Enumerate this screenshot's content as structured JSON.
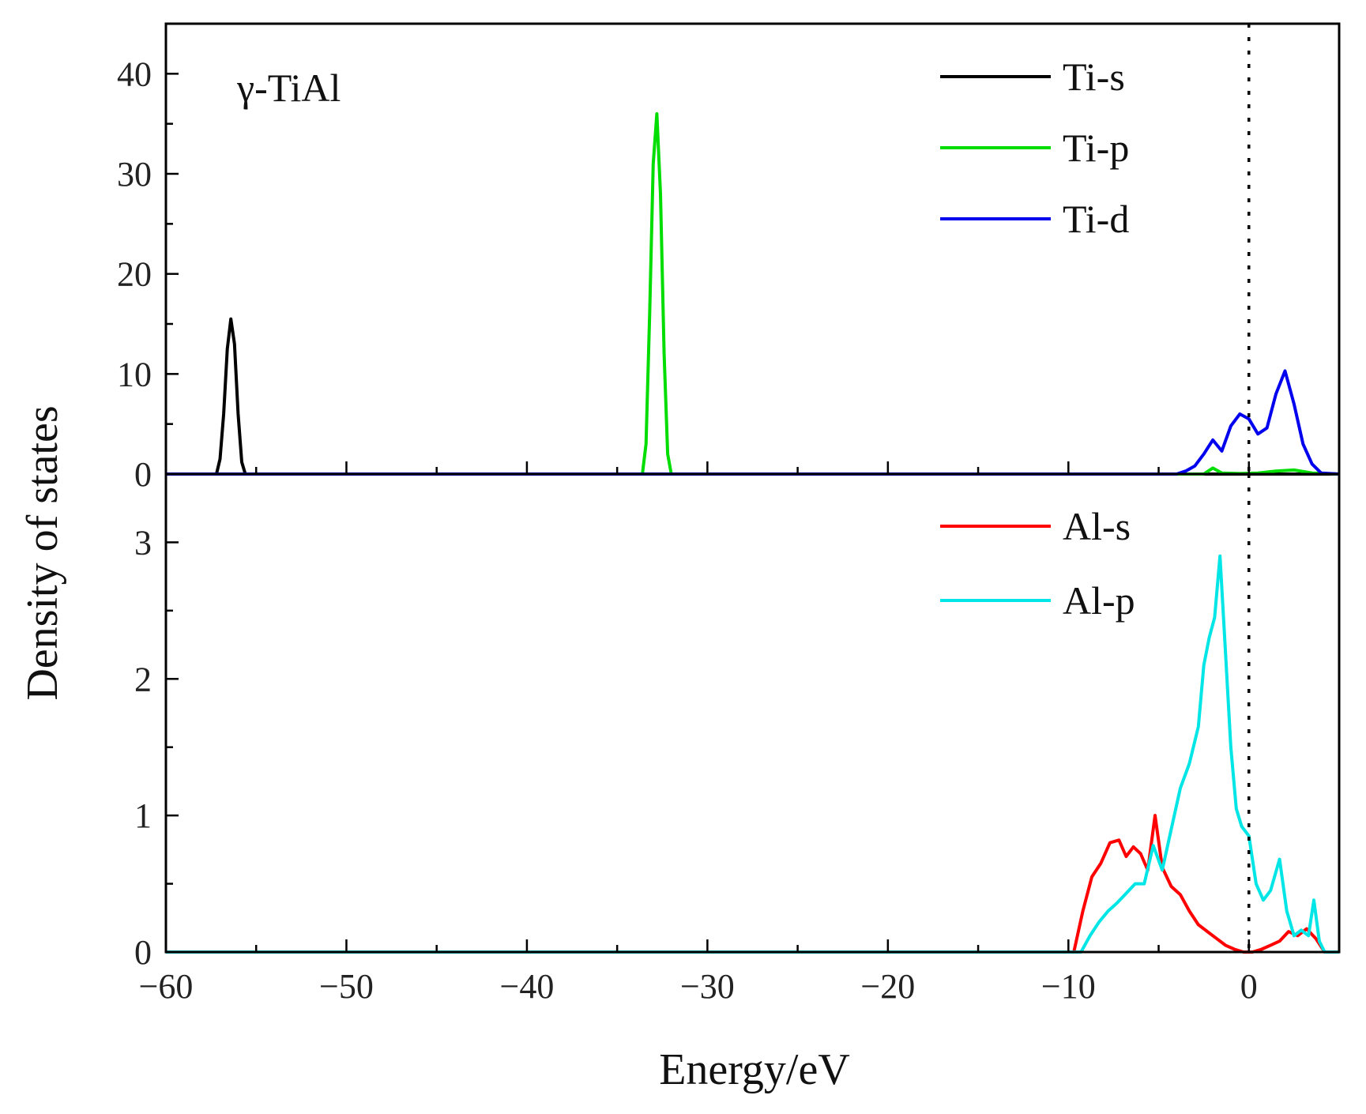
{
  "chart_data": {
    "type": "line",
    "xlabel": "Energy/eV",
    "ylabel": "Density of states",
    "xlim": [
      -60,
      5
    ],
    "xticks": [
      -60,
      -50,
      -40,
      -30,
      -20,
      -10,
      0
    ],
    "xtick_labels": [
      "−60",
      "−50",
      "−40",
      "−30",
      "−20",
      "−10",
      "0"
    ],
    "fermi_level": 0,
    "panels": [
      {
        "id": "top",
        "annotation": "γ-TiAl",
        "ylim": [
          0,
          45
        ],
        "yticks": [
          0,
          10,
          20,
          30,
          40
        ],
        "ytick_labels": [
          "0",
          "10",
          "20",
          "30",
          "40"
        ],
        "series": [
          {
            "name": "Ti-s",
            "color": "#000000",
            "x": [
              -60,
              -57.2,
              -57.0,
              -56.8,
              -56.6,
              -56.4,
              -56.2,
              -56.0,
              -55.8,
              -55.6,
              5
            ],
            "y": [
              0,
              0,
              1.5,
              6,
              12.5,
              15.5,
              13,
              6,
              1.2,
              0,
              0
            ]
          },
          {
            "name": "Ti-p",
            "color": "#00dd00",
            "x": [
              -60,
              -33.6,
              -33.4,
              -33.2,
              -33.0,
              -32.8,
              -32.6,
              -32.4,
              -32.2,
              -32.0,
              -2.5,
              -2.0,
              -1.5,
              -0.5,
              0.5,
              1.5,
              2.5,
              3.5,
              5
            ],
            "y": [
              0,
              0,
              3,
              16,
              31,
              36,
              28,
              12,
              2,
              0,
              0,
              0.6,
              0.1,
              0.05,
              0.1,
              0.3,
              0.4,
              0.1,
              0
            ]
          },
          {
            "name": "Ti-d",
            "color": "#0000ee",
            "x": [
              -60,
              -4.0,
              -3.5,
              -3.0,
              -2.5,
              -2.0,
              -1.5,
              -1.0,
              -0.5,
              0.0,
              0.5,
              1.0,
              1.5,
              2.0,
              2.5,
              3.0,
              3.5,
              4.0,
              5
            ],
            "y": [
              0,
              0,
              0.3,
              0.8,
              2.0,
              3.4,
              2.3,
              4.8,
              6.0,
              5.5,
              4.0,
              4.6,
              8.0,
              10.3,
              7.0,
              3.0,
              1.0,
              0.1,
              0
            ]
          }
        ]
      },
      {
        "id": "bottom",
        "ylim": [
          0,
          3.5
        ],
        "yticks": [
          0,
          1,
          2,
          3
        ],
        "ytick_labels": [
          "0",
          "1",
          "2",
          "3"
        ],
        "series": [
          {
            "name": "Al-s",
            "color": "#ff0000",
            "x": [
              -60,
              -9.7,
              -9.2,
              -8.7,
              -8.2,
              -7.7,
              -7.2,
              -6.8,
              -6.4,
              -6.0,
              -5.6,
              -5.2,
              -4.8,
              -4.3,
              -3.8,
              -3.3,
              -2.8,
              -2.3,
              -1.8,
              -1.3,
              -0.8,
              -0.3,
              0.2,
              0.7,
              1.2,
              1.7,
              2.2,
              2.7,
              3.2,
              3.7,
              4.2,
              5
            ],
            "y": [
              0,
              0,
              0.3,
              0.55,
              0.65,
              0.8,
              0.82,
              0.7,
              0.77,
              0.72,
              0.6,
              1.0,
              0.62,
              0.48,
              0.42,
              0.3,
              0.2,
              0.15,
              0.1,
              0.05,
              0.02,
              0.0,
              0.0,
              0.02,
              0.05,
              0.08,
              0.15,
              0.12,
              0.17,
              0.1,
              0.0,
              0
            ]
          },
          {
            "name": "Al-p",
            "color": "#00e5e5",
            "x": [
              -60,
              -9.3,
              -8.8,
              -8.3,
              -7.8,
              -7.3,
              -6.8,
              -6.3,
              -5.8,
              -5.3,
              -4.8,
              -4.3,
              -3.8,
              -3.3,
              -2.8,
              -2.5,
              -2.2,
              -1.9,
              -1.6,
              -1.3,
              -1.0,
              -0.7,
              -0.4,
              0.0,
              0.4,
              0.8,
              1.2,
              1.7,
              2.1,
              2.5,
              2.9,
              3.3,
              3.6,
              3.9,
              4.2,
              5
            ],
            "y": [
              0,
              0,
              0.12,
              0.22,
              0.3,
              0.36,
              0.43,
              0.5,
              0.5,
              0.78,
              0.6,
              0.9,
              1.2,
              1.38,
              1.65,
              2.1,
              2.3,
              2.45,
              2.9,
              2.2,
              1.5,
              1.05,
              0.92,
              0.85,
              0.5,
              0.38,
              0.45,
              0.68,
              0.3,
              0.12,
              0.16,
              0.12,
              0.38,
              0.08,
              0.0,
              0
            ]
          }
        ]
      }
    ]
  }
}
